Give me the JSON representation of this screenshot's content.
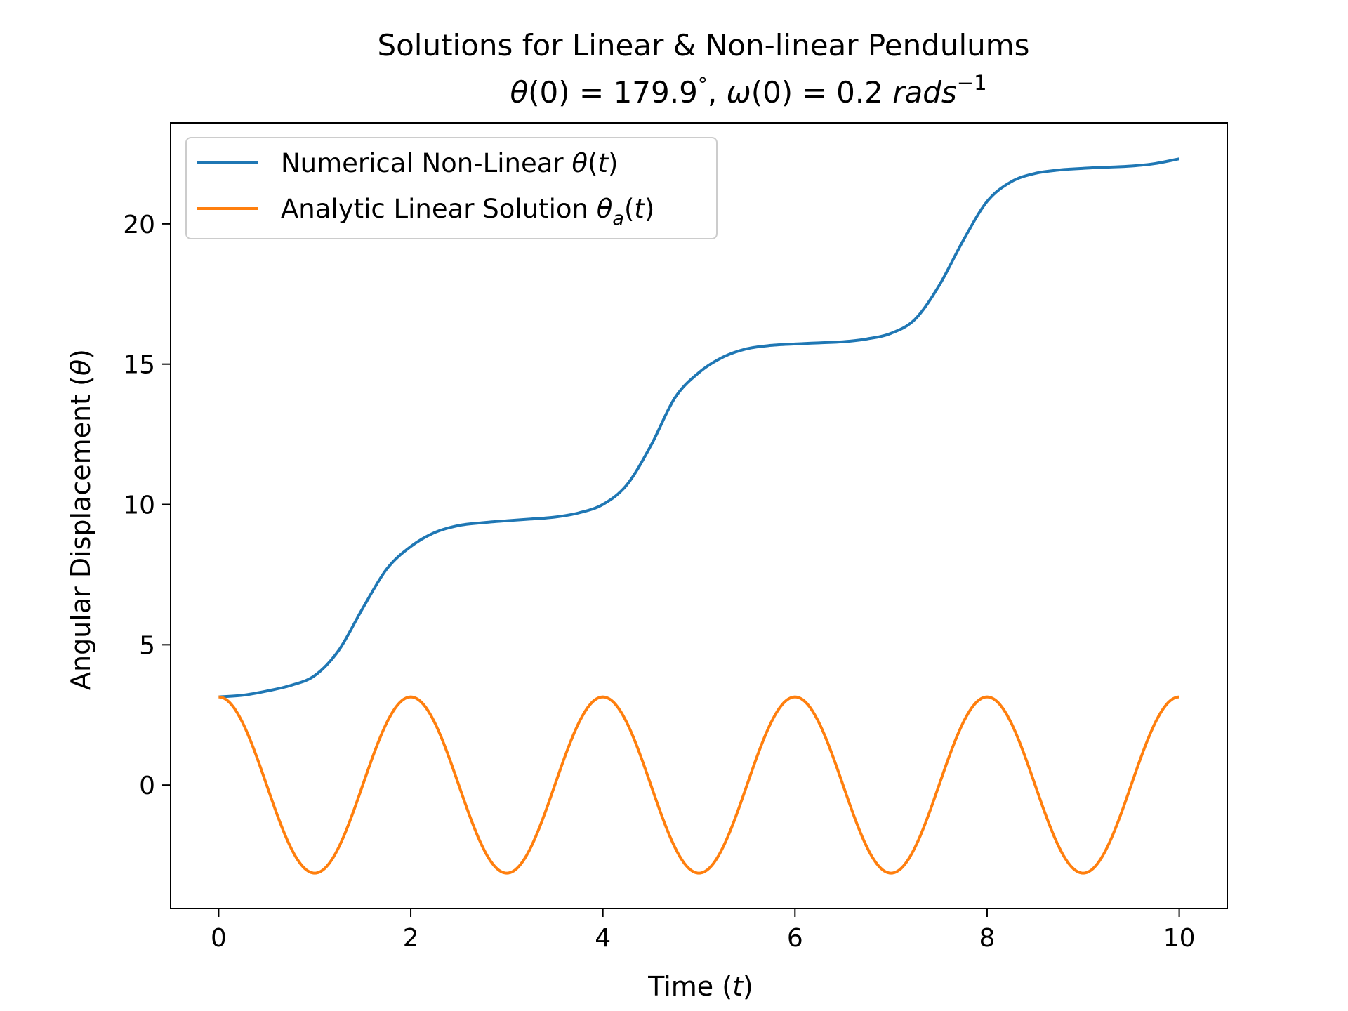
{
  "chart_data": {
    "type": "line",
    "title_line1": "Solutions for Linear & Non-linear Pendulums",
    "title_line2": {
      "theta": "θ",
      "paren0": "(0)",
      "theta_eq": " = 179.9",
      "deg": "°",
      "sep": ", ",
      "omega": "ω",
      "paren0b": "(0)",
      "omega_eq": " = 0.2 ",
      "units": "rads",
      "exp": "−1"
    },
    "xlabel": {
      "text": "Time (",
      "var": "t",
      "close": ")"
    },
    "ylabel": {
      "text": "Angular Displacement (",
      "var": "θ",
      "close": ")"
    },
    "xlim": [
      -0.5,
      10.5
    ],
    "ylim": [
      -4.4,
      23.6
    ],
    "x_ticks": [
      0,
      2,
      4,
      6,
      8,
      10
    ],
    "x_tick_labels": [
      "0",
      "2",
      "4",
      "6",
      "8",
      "10"
    ],
    "y_ticks": [
      0,
      5,
      10,
      15,
      20
    ],
    "y_tick_labels": [
      "0",
      "5",
      "10",
      "15",
      "20"
    ],
    "grid": false,
    "legend_position": "upper-left",
    "series": [
      {
        "name_parts": [
          "Numerical Non-Linear  ",
          "θ",
          "(",
          "t",
          ")"
        ],
        "color": "#1f77b4",
        "x": [
          0.0,
          0.25,
          0.5,
          0.75,
          1.0,
          1.25,
          1.5,
          1.75,
          2.0,
          2.25,
          2.5,
          2.75,
          3.0,
          3.25,
          3.5,
          3.75,
          4.0,
          4.25,
          4.5,
          4.75,
          5.0,
          5.25,
          5.5,
          5.75,
          6.0,
          6.25,
          6.5,
          6.75,
          7.0,
          7.25,
          7.5,
          7.75,
          8.0,
          8.25,
          8.5,
          8.75,
          9.0,
          9.25,
          9.5,
          9.75,
          10.0
        ],
        "y": [
          3.14,
          3.2,
          3.35,
          3.55,
          3.9,
          4.8,
          6.3,
          7.7,
          8.5,
          9.0,
          9.25,
          9.35,
          9.42,
          9.48,
          9.55,
          9.7,
          10.0,
          10.7,
          12.1,
          13.8,
          14.7,
          15.25,
          15.55,
          15.67,
          15.72,
          15.76,
          15.8,
          15.9,
          16.1,
          16.6,
          17.8,
          19.4,
          20.8,
          21.5,
          21.8,
          21.92,
          21.98,
          22.02,
          22.06,
          22.15,
          22.32
        ]
      },
      {
        "name_parts": [
          "Analytic Linear Solution ",
          "θ",
          "a",
          "(",
          "t",
          ")"
        ],
        "color": "#ff7f0e",
        "function": "3.14 cos(πt)",
        "x_min": 0,
        "x_max": 10
      }
    ]
  }
}
